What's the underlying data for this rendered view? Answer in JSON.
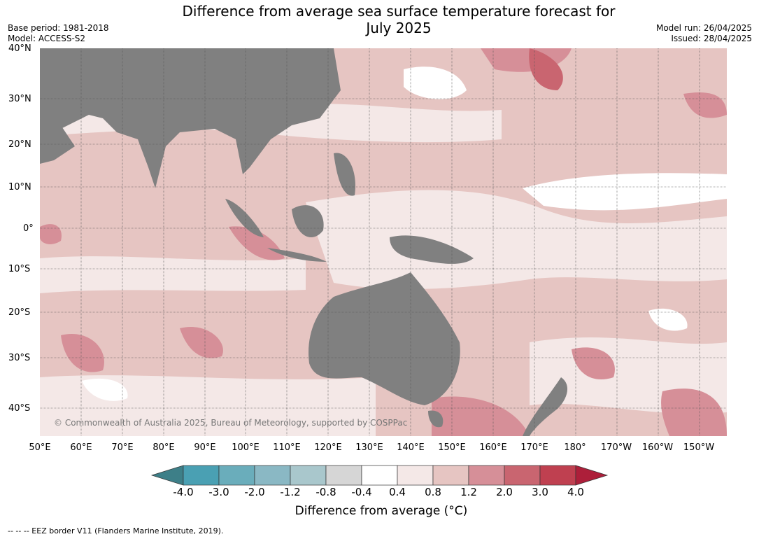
{
  "title_line1": "Difference from average sea surface temperature forecast for",
  "title_line2": "July 2025",
  "meta_left": [
    "Base period: 1981-2018",
    "Model: ACCESS-S2"
  ],
  "meta_right": [
    "Model run: 26/04/2025",
    "Issued: 28/04/2025"
  ],
  "lat_labels": [
    "40°N",
    "30°N",
    "20°N",
    "10°N",
    "0°",
    "10°S",
    "20°S",
    "30°S",
    "40°S"
  ],
  "lon_labels": [
    "50°E",
    "60°E",
    "70°E",
    "80°E",
    "90°E",
    "100°E",
    "110°E",
    "120°E",
    "130°E",
    "140°E",
    "150°E",
    "160°E",
    "170°E",
    "180°",
    "170°W",
    "160°W",
    "150°W"
  ],
  "credit": "© Commonwealth of Australia 2025, Bureau of Meteorology, supported by COSPPac",
  "colorbar": {
    "ticks": [
      "-4.0",
      "-3.0",
      "-2.0",
      "-1.2",
      "-0.8",
      "-0.4",
      "0.4",
      "0.8",
      "1.2",
      "2.0",
      "3.0",
      "4.0"
    ],
    "colors": [
      "#3d7f88",
      "#4aa0b3",
      "#6aadbb",
      "#8ab8c4",
      "#a9c7cc",
      "#d6d6d6",
      "#ffffff",
      "#f4e8e7",
      "#e6c5c2",
      "#d68f98",
      "#c96570",
      "#bf4050",
      "#ad1f3a"
    ],
    "label": "Difference from average (°C)"
  },
  "footer": "-- -- -- EEZ border V11 (Flanders Marine Institute, 2019).",
  "map_colors": {
    "land": "#808080",
    "light": "#f4e8e7",
    "medium": "#e6c5c2",
    "strong": "#d68f98",
    "stronger": "#c96570",
    "neutral": "#ffffff"
  }
}
